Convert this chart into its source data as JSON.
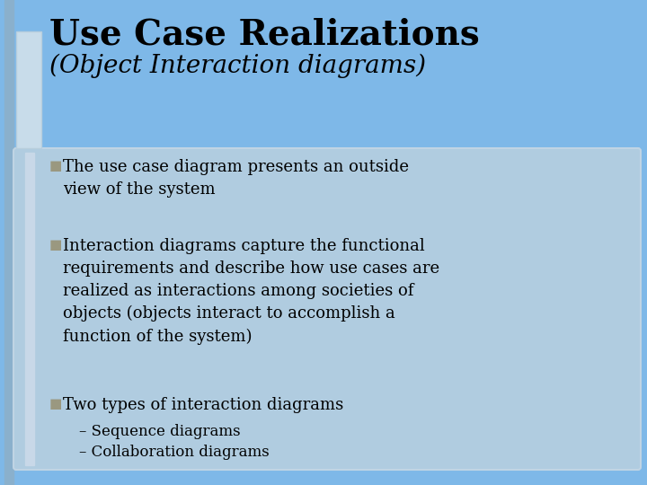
{
  "bg_color": "#7eb8e8",
  "title_line1": "Use Case Realizations",
  "title_line2": "(Object Interaction diagrams)",
  "title_color": "#000000",
  "title_fontsize1": 28,
  "title_fontsize2": 20,
  "content_bg": "#b0cce0",
  "bullet_color": "#9a9880",
  "bullet_char": "■",
  "bullets": [
    "The use case diagram presents an outside\nview of the system",
    "Interaction diagrams capture the functional\nrequirements and describe how use cases are\nrealized as interactions among societies of\nobjects (objects interact to accomplish a\nfunction of the system)",
    "Two types of interaction diagrams"
  ],
  "sub_bullets": [
    "– Sequence diagrams",
    "– Collaboration diagrams"
  ],
  "text_color": "#000000",
  "bullet_fontsize": 13,
  "sub_bullet_fontsize": 12,
  "left_bar_color": "#8ab0cc",
  "title_rect_color": "#9ab8cc",
  "content_border_color": "#c0d4e4",
  "inner_left_bar_color": "#c8d8e8"
}
